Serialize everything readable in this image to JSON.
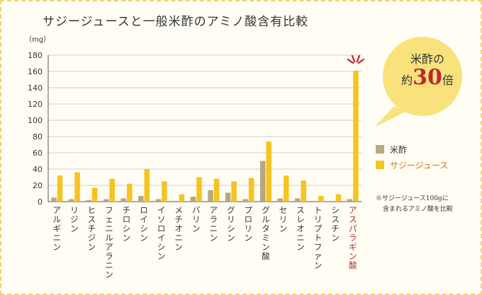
{
  "title": "サジージュースと一般米酢のアミノ酸含有比較",
  "callout": {
    "line1": "米酢の",
    "prefix": "約",
    "number": "30",
    "suffix": "倍"
  },
  "note": {
    "line1": "※サジージュース100gに",
    "line2": "含まれるアミノ酸を比較"
  },
  "colors": {
    "rice_vinegar": "#b8a87e",
    "sajee_juice": "#f7c320",
    "highlight": "#c0262d",
    "callout_bg": "#f9e27c"
  },
  "chart_data": {
    "type": "bar",
    "unit_label": "（mg）",
    "ylim": [
      0,
      180
    ],
    "yticks": [
      0,
      20,
      40,
      60,
      80,
      100,
      120,
      140,
      160,
      180
    ],
    "grid": true,
    "legend_position": "right",
    "highlight_category": "アスパラギン酸",
    "categories": [
      "アルギニン",
      "リジン",
      "ヒスチジン",
      "フェニルアラニン",
      "チロシン",
      "ロイシン",
      "イソロイシン",
      "メチオニン",
      "バリン",
      "アラニン",
      "グリシン",
      "プロリン",
      "グルタミン酸",
      "セリン",
      "スレオニン",
      "トリプトファン",
      "シスチン",
      "アスパラギン酸"
    ],
    "series": [
      {
        "name": "米酢",
        "values": [
          5,
          3,
          2,
          3,
          4,
          7,
          3,
          1,
          6,
          14,
          11,
          3,
          50,
          4,
          4,
          0,
          0,
          3
        ]
      },
      {
        "name": "サジージュース",
        "values": [
          32,
          36,
          17,
          28,
          22,
          40,
          25,
          9,
          30,
          28,
          25,
          29,
          74,
          32,
          26,
          7,
          9,
          161
        ]
      }
    ]
  }
}
